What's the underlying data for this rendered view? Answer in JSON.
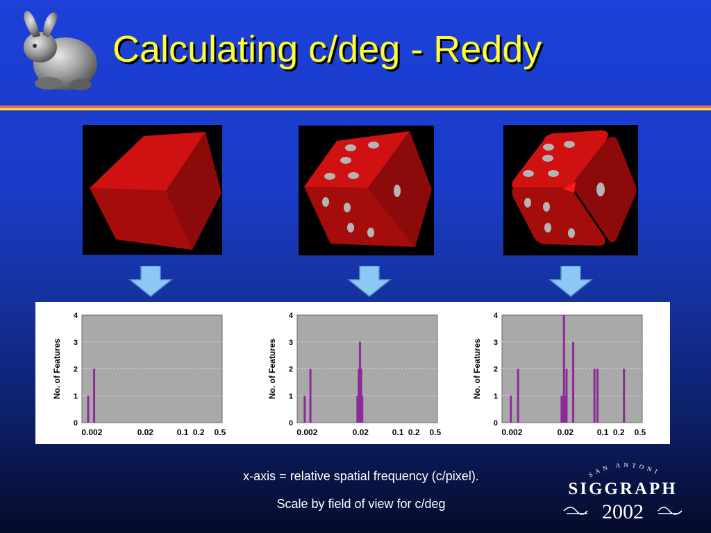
{
  "title": "Calculating c/deg - Reddy",
  "captions": {
    "line1": "x-axis = relative spatial frequency (c/pixel).",
    "line2": "Scale by field of view for c/deg"
  },
  "logo": {
    "top": "SAN ANTONIO",
    "name": "SIGGRAPH",
    "year": "2002"
  },
  "icons": {
    "bunny": "stanford-bunny-icon",
    "arrow": "down-arrow-icon"
  },
  "colors": {
    "title": "#ffff33",
    "bar": "#8c2a96",
    "die": "#c40d0d",
    "pip": "#b4b4b4"
  },
  "chart_data": [
    {
      "type": "bar",
      "ylabel": "No. of Features",
      "x_tick_labels": [
        "0.002",
        "0.02",
        "0.1",
        "0.2",
        "0.5"
      ],
      "x_ticks": [
        0.002,
        0.02,
        0.1,
        0.2,
        0.5
      ],
      "y_ticks": [
        0,
        1,
        2,
        3,
        4
      ],
      "ylim": [
        0,
        4
      ],
      "xscale": "log",
      "grid": true,
      "x": [
        0.0017,
        0.0022
      ],
      "values": [
        1,
        2
      ]
    },
    {
      "type": "bar",
      "ylabel": "No. of Features",
      "x_tick_labels": [
        "0.002",
        "0.02",
        "0.1",
        "0.2",
        "0.5"
      ],
      "x_ticks": [
        0.002,
        0.02,
        0.1,
        0.2,
        0.5
      ],
      "y_ticks": [
        0,
        1,
        2,
        3,
        4
      ],
      "ylim": [
        0,
        4
      ],
      "xscale": "log",
      "grid": true,
      "x": [
        0.0018,
        0.0023,
        0.0175,
        0.0185,
        0.0195,
        0.0205,
        0.0215
      ],
      "values": [
        1,
        2,
        1,
        2,
        3,
        2,
        1
      ]
    },
    {
      "type": "bar",
      "ylabel": "No. of Features",
      "x_tick_labels": [
        "0.002",
        "0.02",
        "0.1",
        "0.2",
        "0.5"
      ],
      "x_ticks": [
        0.002,
        0.02,
        0.1,
        0.2,
        0.5
      ],
      "y_ticks": [
        0,
        1,
        2,
        3,
        4
      ],
      "ylim": [
        0,
        4
      ],
      "xscale": "log",
      "grid": true,
      "x": [
        0.0019,
        0.0026,
        0.017,
        0.0178,
        0.0188,
        0.0198,
        0.021,
        0.028,
        0.07,
        0.08,
        0.25
      ],
      "values": [
        1,
        2,
        1,
        1,
        4,
        1,
        2,
        3,
        2,
        2,
        2
      ]
    }
  ]
}
